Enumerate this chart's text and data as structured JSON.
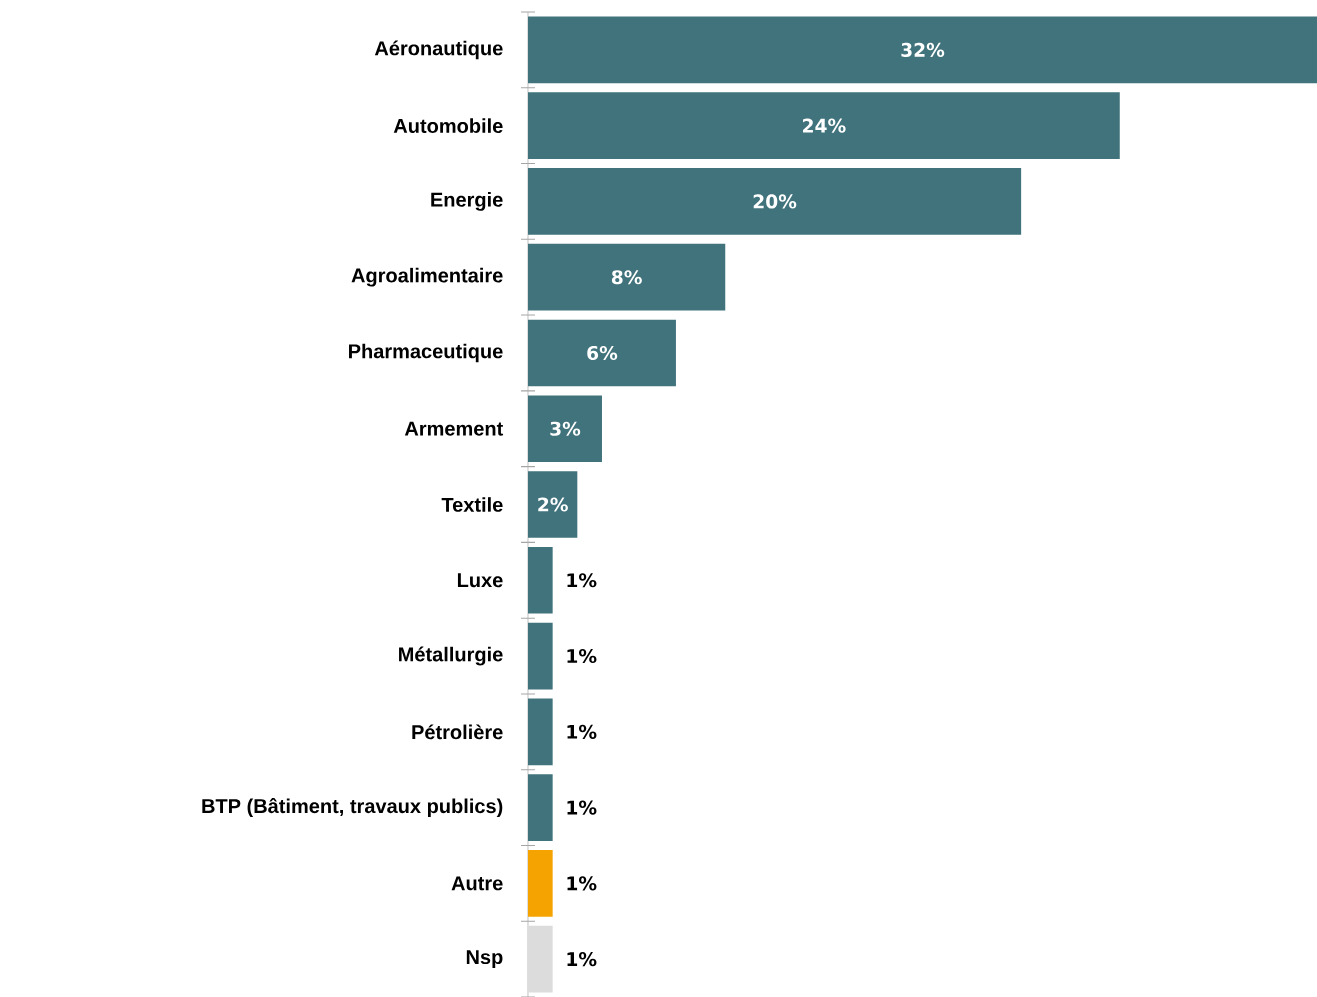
{
  "chart_data": {
    "type": "bar",
    "orientation": "horizontal",
    "categories": [
      "Aéronautique",
      "Automobile",
      "Energie",
      "Agroalimentaire",
      "Pharmaceutique",
      "Armement",
      "Textile",
      "Luxe",
      "Métallurgie",
      "Pétrolière",
      "BTP (Bâtiment, travaux publics)",
      "Autre",
      "Nsp"
    ],
    "values": [
      32,
      24,
      20,
      8,
      6,
      3,
      2,
      1,
      1,
      1,
      1,
      1,
      1
    ],
    "colors": [
      "#41737c",
      "#41737c",
      "#41737c",
      "#41737c",
      "#41737c",
      "#41737c",
      "#41737c",
      "#41737c",
      "#41737c",
      "#41737c",
      "#41737c",
      "#f5a300",
      "#dcdcdc"
    ],
    "value_labels": [
      "32%",
      "24%",
      "20%",
      "8%",
      "6%",
      "3%",
      "2%",
      "1%",
      "1%",
      "1%",
      "1%",
      "1%",
      "1%"
    ]
  }
}
